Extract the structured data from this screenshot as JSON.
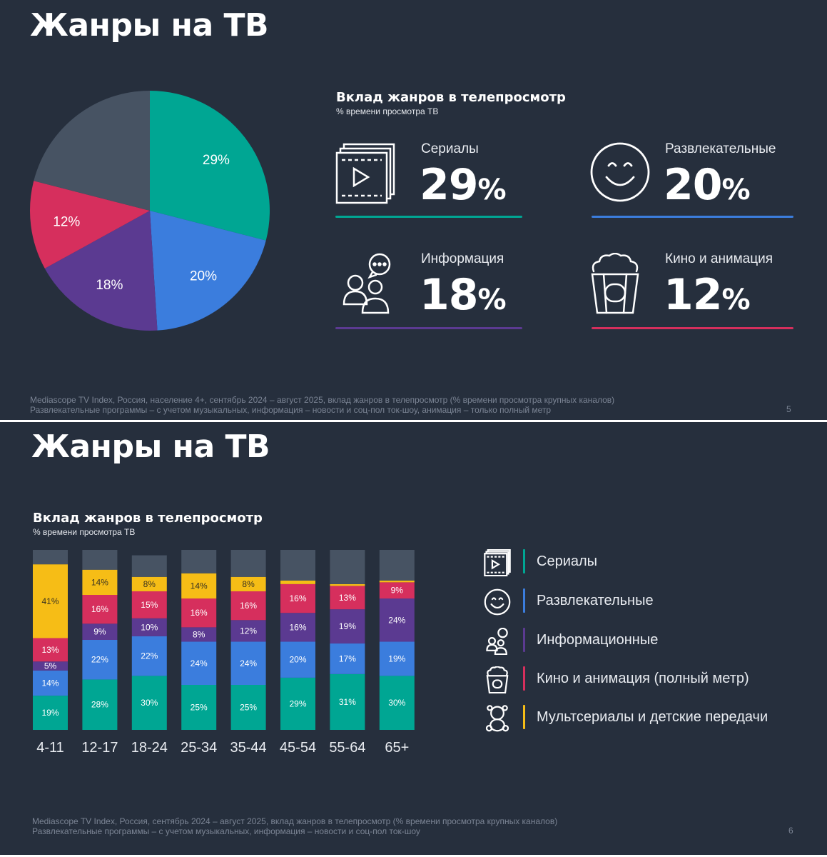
{
  "slides": [
    {
      "title": "Жанры на ТВ",
      "chart_title": "Вклад жанров в телепросмотр",
      "chart_subtitle": "% времени просмотра ТВ",
      "kpis": [
        {
          "label": "Сериалы",
          "value": "29",
          "pct": "%",
          "color": "#00a693",
          "icon": "film-frames-icon"
        },
        {
          "label": "Развлекательные",
          "value": "20",
          "pct": "%",
          "color": "#3b7ddd",
          "icon": "smiley-face-icon"
        },
        {
          "label": "Информация",
          "value": "18",
          "pct": "%",
          "color": "#5b3a91",
          "icon": "people-chat-icon"
        },
        {
          "label": "Кино и анимация",
          "value": "12",
          "pct": "%",
          "color": "#d62f5d",
          "icon": "popcorn-icon"
        }
      ],
      "footnote_1": "Mediascope TV Index, Россия, население 4+, сентябрь 2024 – август 2025, вклад жанров в телепросмотр (% времени просмотра крупных каналов)",
      "footnote_2": "Развлекательные программы – с учетом музыкальных, информация – новости и соц-пол ток-шоу, анимация – только полный метр",
      "page": "5"
    },
    {
      "title": "Жанры на ТВ",
      "chart_title": "Вклад жанров в телепросмотр",
      "chart_subtitle": "% времени просмотра ТВ",
      "legend": [
        {
          "label": "Сериалы",
          "color": "#00a693",
          "icon": "film-frames-icon"
        },
        {
          "label": "Развлекательные",
          "color": "#3b7ddd",
          "icon": "smiley-face-icon"
        },
        {
          "label": "Информационные",
          "color": "#5b3a91",
          "icon": "people-chat-icon"
        },
        {
          "label": "Кино и анимация (полный метр)",
          "color": "#d62f5d",
          "icon": "popcorn-icon"
        },
        {
          "label": "Мультсериалы и детские передачи",
          "color": "#f6bd16",
          "icon": "teddy-bear-icon"
        }
      ],
      "footnote_1": "Mediascope TV Index, Россия, сентябрь 2024 – август 2025, вклад жанров в телепросмотр (% времени просмотра крупных каналов)",
      "footnote_2": "Развлекательные программы – с учетом музыкальных, информация – новости и соц-пол ток-шоу",
      "page": "6"
    }
  ],
  "chart_data": [
    {
      "type": "pie",
      "slices": [
        {
          "name": "Сериалы",
          "value": 29,
          "label": "29%",
          "color": "#00a693"
        },
        {
          "name": "Развлекательные",
          "value": 20,
          "label": "20%",
          "color": "#3b7ddd"
        },
        {
          "name": "Информация",
          "value": 18,
          "label": "18%",
          "color": "#5b3a91"
        },
        {
          "name": "Кино и анимация",
          "value": 12,
          "label": "12%",
          "color": "#d62f5d"
        },
        {
          "name": "",
          "value": 21,
          "label": "",
          "color": "#475363"
        }
      ]
    },
    {
      "type": "bar",
      "stacked": true,
      "categories": [
        "4-11",
        "12-17",
        "18-24",
        "25-34",
        "35-44",
        "45-54",
        "55-64",
        "65+"
      ],
      "series": [
        {
          "name": "Сериалы",
          "color": "#00a693",
          "values": [
            19,
            28,
            30,
            25,
            25,
            29,
            31,
            30
          ],
          "labels": [
            "19%",
            "28%",
            "30%",
            "25%",
            "25%",
            "29%",
            "31%",
            "30%"
          ]
        },
        {
          "name": "Развлекательные",
          "color": "#3b7ddd",
          "values": [
            14,
            22,
            22,
            24,
            24,
            20,
            17,
            19
          ],
          "labels": [
            "14%",
            "22%",
            "22%",
            "24%",
            "24%",
            "20%",
            "17%",
            "19%"
          ]
        },
        {
          "name": "Информационные",
          "color": "#5b3a91",
          "values": [
            5,
            9,
            10,
            8,
            12,
            16,
            19,
            24
          ],
          "labels": [
            "5%",
            "9%",
            "10%",
            "8%",
            "12%",
            "16%",
            "19%",
            "24%"
          ]
        },
        {
          "name": "Кино и анимация (полный метр)",
          "color": "#d62f5d",
          "values": [
            13,
            16,
            15,
            16,
            16,
            16,
            13,
            9
          ],
          "labels": [
            "13%",
            "16%",
            "15%",
            "16%",
            "16%",
            "16%",
            "13%",
            "9%"
          ]
        },
        {
          "name": "Мультсериалы и детские передачи",
          "color": "#f6bd16",
          "values": [
            41,
            14,
            8,
            14,
            8,
            2,
            1,
            1
          ],
          "labels": [
            "41%",
            "14%",
            "8%",
            "14%",
            "8%",
            "",
            "",
            ""
          ]
        },
        {
          "name": "",
          "color": "#475363",
          "values": [
            8,
            11,
            12,
            13,
            15,
            17,
            19,
            17
          ],
          "labels": [
            "",
            "",
            "",
            "",
            "",
            "",
            "",
            ""
          ]
        }
      ],
      "ylim": [
        0,
        100
      ]
    }
  ]
}
